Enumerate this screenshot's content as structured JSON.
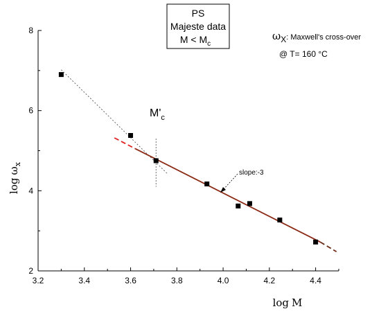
{
  "chart_data": {
    "type": "scatter",
    "xlabel_main": "log",
    "xlabel_var": "M",
    "ylabel_main": "log",
    "ylabel_var": "ω",
    "ylabel_sub": "x",
    "xlim": [
      3.2,
      4.5
    ],
    "ylim": [
      2,
      8
    ],
    "xticks": [
      3.2,
      3.4,
      3.6,
      3.8,
      4.0,
      4.2,
      4.4
    ],
    "xtick_labels": [
      "3.2",
      "3.4",
      "3.6",
      "3.8",
      "4.0",
      "4.2",
      "4.4"
    ],
    "yticks": [
      2,
      4,
      6,
      8
    ],
    "ytick_labels": [
      "2",
      "4",
      "6",
      "8"
    ],
    "grid": false,
    "series": [
      {
        "marker": "square",
        "color": "#000000",
        "x": [
          3.3,
          3.6,
          3.71,
          3.93,
          4.065,
          4.115,
          4.245,
          4.4
        ],
        "y": [
          6.9,
          5.38,
          4.75,
          4.17,
          3.62,
          3.68,
          3.27,
          2.72
        ]
      }
    ],
    "fit_lines": [
      {
        "style": "dotted",
        "color": "#555555",
        "x": [
          3.3,
          3.76
        ],
        "y": [
          7.02,
          4.42
        ]
      },
      {
        "style": "dashed",
        "color": "#e02020",
        "x": [
          3.53,
          3.62
        ],
        "y": [
          5.32,
          5.05
        ]
      },
      {
        "style": "solid",
        "color": "#8b2a14",
        "x": [
          3.62,
          4.42
        ],
        "y": [
          5.05,
          2.72
        ]
      },
      {
        "style": "dashed",
        "color": "#6b2a14",
        "x": [
          4.42,
          4.49
        ],
        "y": [
          2.72,
          2.48
        ]
      }
    ],
    "crossover_marker": {
      "style": "dotted",
      "x": 3.71,
      "y_range": [
        4.1,
        5.3
      ]
    },
    "annotations": {
      "mc_main": "M'",
      "mc_sub": "c",
      "slope_label": "slope:-3",
      "omega_symbol": "ω",
      "omega_sub": "X",
      "crossover_desc": ": Maxwell's cross-over",
      "temperature": "@ T= 160 °C"
    },
    "legend_box": {
      "line1": "PS",
      "line2": "Majeste data",
      "line3_main": "M < M",
      "line3_sub": "c"
    }
  }
}
